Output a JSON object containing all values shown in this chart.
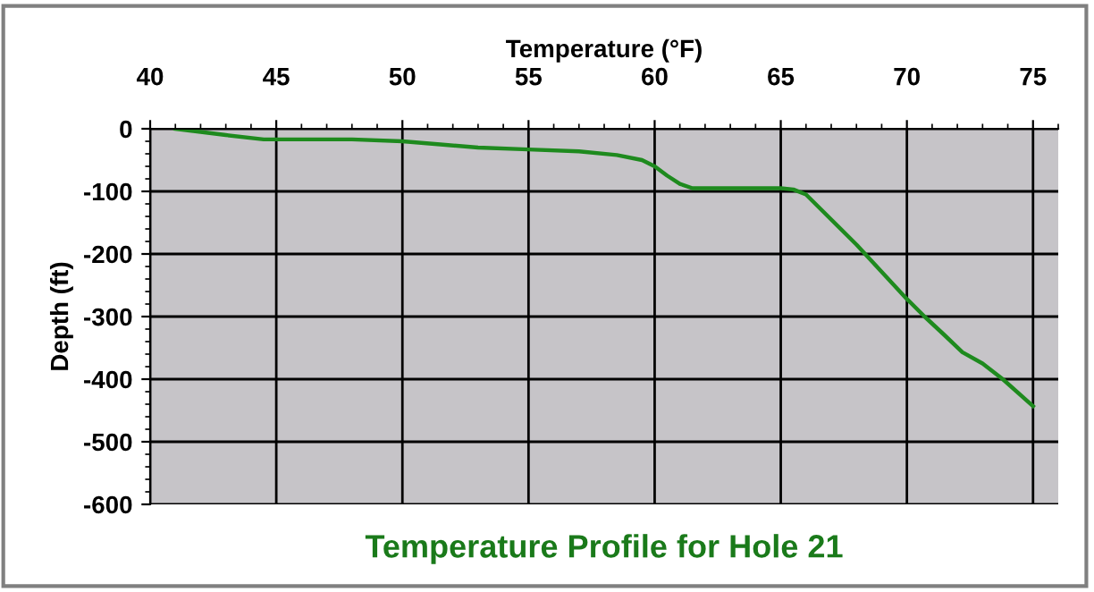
{
  "chart_data": {
    "type": "line",
    "title": "Temperature Profile for Hole 21",
    "xlabel": "Temperature (°F)",
    "ylabel": "Depth (ft)",
    "series": [
      {
        "color": "#1e8a1e",
        "x": [
          41,
          42,
          43,
          44.5,
          46,
          48,
          50,
          51.5,
          53,
          55,
          57,
          58.5,
          59.5,
          60,
          60.5,
          61,
          61.5,
          63,
          65,
          65.5,
          66,
          68,
          70,
          70.7,
          71.5,
          72.2,
          73,
          73.8,
          75
        ],
        "values": [
          0,
          -5,
          -10,
          -17,
          -17,
          -17,
          -20,
          -25,
          -30,
          -33,
          -36,
          -42,
          -50,
          -60,
          -75,
          -88,
          -95,
          -95,
          -95,
          -97,
          -105,
          -185,
          -272,
          -300,
          -330,
          -357,
          -375,
          -400,
          -443
        ]
      }
    ],
    "xlim": [
      40,
      76
    ],
    "xticks": [
      40,
      45,
      50,
      55,
      60,
      65,
      70,
      75
    ],
    "ylim": [
      -600,
      0
    ],
    "yticks": [
      -600,
      -500,
      -400,
      -300,
      -200,
      -100,
      0
    ],
    "grid": true,
    "marker": "none",
    "line_style": "solid"
  }
}
